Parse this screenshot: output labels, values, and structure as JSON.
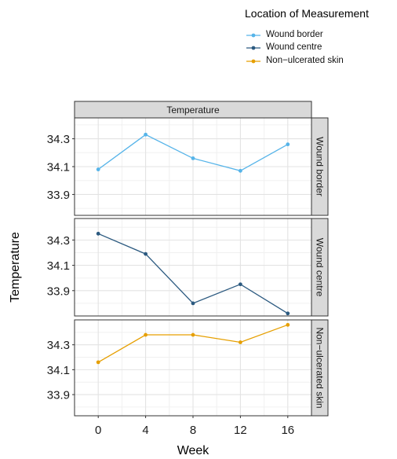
{
  "chart_data": {
    "type": "line",
    "facet_title": "Temperature",
    "xlabel": "Week",
    "ylabel": "Temperature",
    "x": [
      0,
      4,
      8,
      12,
      16
    ],
    "xlim": [
      -2,
      18
    ],
    "x_ticks": [
      "0",
      "4",
      "8",
      "12",
      "16"
    ],
    "grid": true,
    "legend": {
      "title": "Location of Measurement",
      "placement": "top-right",
      "entries": [
        "Wound border",
        "Wound centre",
        "Non−ulcerated skin"
      ]
    },
    "panels": [
      {
        "strip": "Wound border",
        "series": "Wound border",
        "color": "#56b4e9",
        "values": [
          34.08,
          34.33,
          34.16,
          34.07,
          34.26
        ],
        "ylim": [
          33.75,
          34.45
        ],
        "y_ticks": [
          "33.9",
          "34.1",
          "34.3"
        ]
      },
      {
        "strip": "Wound centre",
        "series": "Wound centre",
        "color": "#2c5a80",
        "values": [
          34.35,
          34.19,
          33.8,
          33.95,
          33.72
        ],
        "ylim": [
          33.7,
          34.47
        ],
        "y_ticks": [
          "33.9",
          "34.1",
          "34.3"
        ]
      },
      {
        "strip": "Non−ulcerated skin",
        "series": "Non−ulcerated skin",
        "color": "#e69f00",
        "values": [
          34.16,
          34.38,
          34.38,
          34.32,
          34.46
        ],
        "ylim": [
          33.73,
          34.5
        ],
        "y_ticks": [
          "33.9",
          "34.1",
          "34.3"
        ]
      }
    ]
  }
}
